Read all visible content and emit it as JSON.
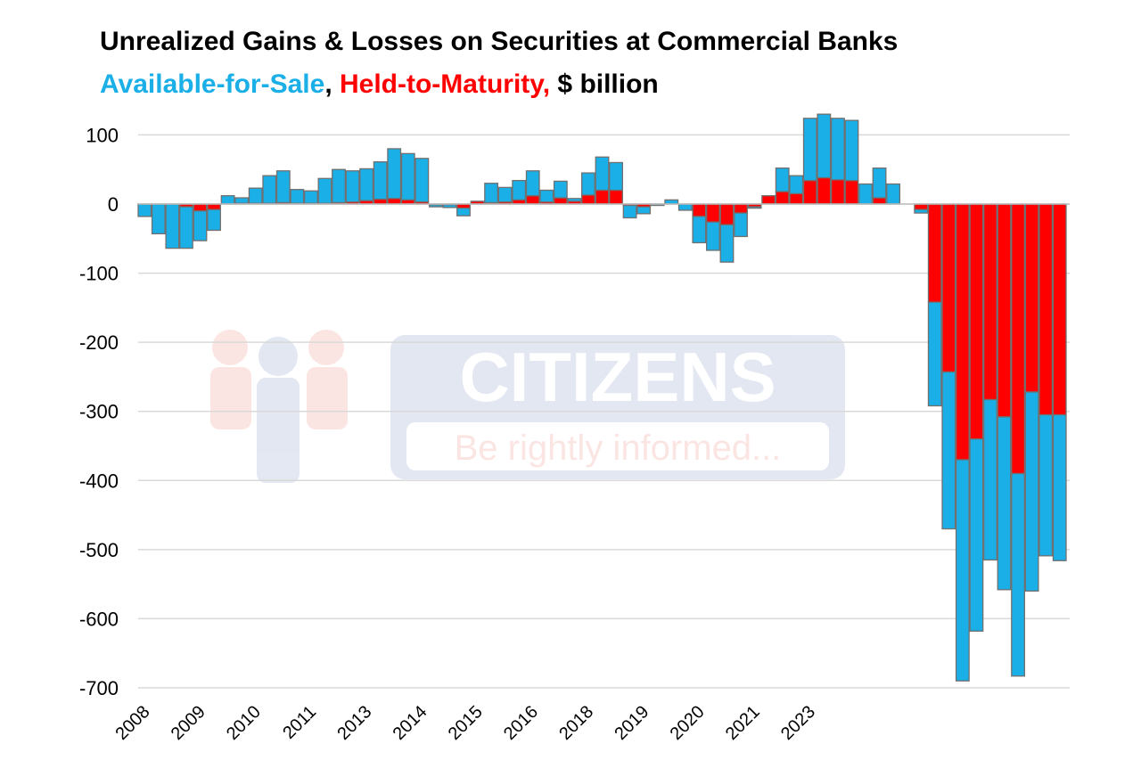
{
  "title": "Unrealized Gains & Losses on Securities at Commercial Banks",
  "subtitle": {
    "afs": "Available-for-Sale",
    "sep1": ", ",
    "htm": "Held-to-Maturity,",
    "sep2": " ",
    "unit": "$ billion"
  },
  "watermark": {
    "brand": "CITIZENS",
    "tagline": "Be rightly informed..."
  },
  "colors": {
    "afs": "#1aafe6",
    "htm": "#ff0000",
    "border": "#707070",
    "grid": "#d9d9d9",
    "afs_text": "#1aafe6",
    "htm_text": "#ff0000"
  },
  "chart_data": {
    "type": "bar",
    "stacked": true,
    "ylim": [
      -700,
      100
    ],
    "yticks": [
      100,
      0,
      -100,
      -200,
      -300,
      -400,
      -500,
      -600,
      -700
    ],
    "grid": true,
    "legend": "none (series named in subtitle)",
    "x_tick_labels": [
      {
        "label": "2008",
        "index": 0
      },
      {
        "label": "2009",
        "index": 4
      },
      {
        "label": "2010",
        "index": 8
      },
      {
        "label": "2011",
        "index": 12
      },
      {
        "label": "2013",
        "index": 16
      },
      {
        "label": "2014",
        "index": 20
      },
      {
        "label": "2015",
        "index": 24
      },
      {
        "label": "2016",
        "index": 28
      },
      {
        "label": "2018",
        "index": 32
      },
      {
        "label": "2019",
        "index": 36
      },
      {
        "label": "2020",
        "index": 40
      },
      {
        "label": "2021",
        "index": 44
      },
      {
        "label": "2023",
        "index": 48
      }
    ],
    "series": [
      {
        "name": "Available-for-Sale",
        "values": [
          -18,
          -43,
          -64,
          -60,
          -43,
          -30,
          12,
          8,
          22,
          40,
          46,
          20,
          18,
          36,
          48,
          45,
          46,
          54,
          72,
          67,
          63,
          -3,
          -4,
          -11,
          0,
          28,
          21,
          28,
          36,
          17,
          24,
          4,
          32,
          48,
          40,
          -18,
          -10,
          -2,
          6,
          -9,
          -38,
          -41,
          -54,
          -34,
          -2,
          0,
          34,
          26,
          90,
          92,
          89,
          87,
          29,
          43,
          29,
          0,
          -5,
          -150,
          -227,
          -320,
          -278,
          -232,
          -250,
          -293,
          -288,
          -204,
          -211
        ]
      },
      {
        "name": "Held-to-Maturity",
        "values": [
          0,
          0,
          0,
          -4,
          -10,
          -8,
          0,
          1,
          1,
          1,
          2,
          1,
          1,
          1,
          2,
          3,
          5,
          7,
          8,
          6,
          3,
          -1,
          -1,
          -6,
          4,
          2,
          3,
          6,
          12,
          3,
          9,
          4,
          13,
          20,
          20,
          -2,
          -4,
          0,
          0,
          0,
          -18,
          -26,
          -30,
          -13,
          -4,
          12,
          18,
          15,
          34,
          38,
          35,
          34,
          0,
          9,
          0,
          0,
          -8,
          -142,
          -243,
          -370,
          -340,
          -283,
          -308,
          -390,
          -272,
          -305,
          -305
        ]
      }
    ]
  }
}
